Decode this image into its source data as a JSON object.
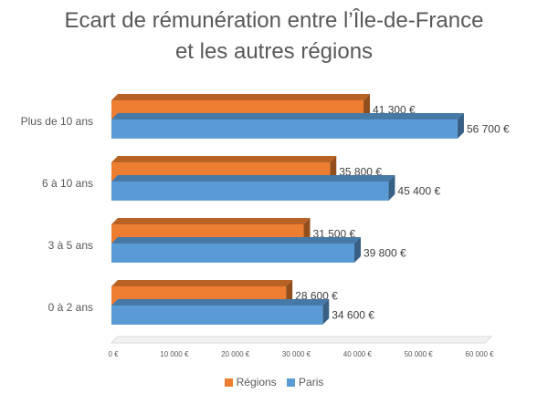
{
  "chart_data": {
    "type": "bar",
    "orientation": "horizontal",
    "title_lines": [
      "Ecart de rémunération entre l’Île-de-France",
      "et les autres régions"
    ],
    "categories": [
      "Plus de 10 ans",
      "6 à 10 ans",
      "3 à 5 ans",
      "0 à 2 ans"
    ],
    "series": [
      {
        "name": "Régions",
        "color": "#ED7D31",
        "values": [
          41300,
          35800,
          31500,
          28600
        ],
        "labels": [
          "41 300 €",
          "35 800 €",
          "31 500 €",
          "28 600 €"
        ]
      },
      {
        "name": "Paris",
        "color": "#5B9BD5",
        "values": [
          56700,
          45400,
          39800,
          34600
        ],
        "labels": [
          "56 700 €",
          "45 400 €",
          "39 800 €",
          "34 600 €"
        ]
      }
    ],
    "xlim": [
      0,
      60000
    ],
    "ticks": [
      0,
      10000,
      20000,
      30000,
      40000,
      50000,
      60000
    ],
    "tick_labels": [
      "0 €",
      "10 000 €",
      "20 000 €",
      "30 000 €",
      "40 000 €",
      "50 000 €",
      "60 000 €"
    ],
    "grid": false,
    "legend_position": "bottom",
    "style": "3d-bar"
  }
}
